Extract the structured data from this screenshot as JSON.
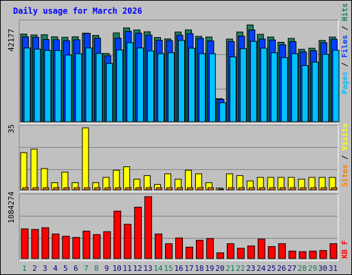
{
  "chart_data": [
    {
      "type": "bar",
      "title": "Daily usage for March 2026",
      "categories": [
        "1",
        "2",
        "3",
        "4",
        "5",
        "6",
        "7",
        "8",
        "9",
        "10",
        "11",
        "12",
        "13",
        "14",
        "15",
        "16",
        "17",
        "18",
        "19",
        "20",
        "21",
        "22",
        "23",
        "24",
        "25",
        "26",
        "27",
        "28",
        "29",
        "30",
        "31"
      ],
      "weekend_days": [
        "1",
        "7",
        "8",
        "14",
        "15",
        "21",
        "22",
        "28",
        "29"
      ],
      "ylabel_max": "42177",
      "ylim": [
        0,
        42177
      ],
      "legend": [
        {
          "label": "Pages",
          "color": "#00c0ff"
        },
        {
          "label": "Files",
          "color": "#0040ff"
        },
        {
          "label": "Hits",
          "color": "#208060"
        }
      ],
      "series": [
        {
          "name": "Hits",
          "color": "#208060",
          "values": [
            38400,
            38000,
            38100,
            37200,
            37000,
            37200,
            38800,
            37800,
            29900,
            38900,
            41100,
            40200,
            39400,
            36900,
            36300,
            39300,
            40200,
            37400,
            37100,
            10100,
            36200,
            39300,
            42400,
            38300,
            37100,
            34800,
            36500,
            31700,
            32200,
            35600,
            37100
          ]
        },
        {
          "name": "Files",
          "color": "#0040ff",
          "values": [
            37200,
            37000,
            36000,
            35900,
            35500,
            35900,
            38700,
            36600,
            28900,
            36600,
            39600,
            38800,
            37900,
            35700,
            35500,
            37900,
            38600,
            36500,
            35400,
            9800,
            35100,
            37500,
            40200,
            36200,
            35800,
            33700,
            35100,
            30600,
            31100,
            34600,
            36100
          ]
        },
        {
          "name": "Pages",
          "color": "#00c0ff",
          "values": [
            32300,
            31800,
            31200,
            31200,
            29200,
            29800,
            32300,
            29900,
            25500,
            31400,
            34600,
            32300,
            31000,
            29800,
            30200,
            35600,
            32200,
            29800,
            29800,
            8300,
            28400,
            32000,
            35200,
            32200,
            30200,
            28100,
            29800,
            24600,
            26100,
            29500,
            31300
          ]
        }
      ]
    },
    {
      "type": "bar",
      "categories": [
        "1",
        "2",
        "3",
        "4",
        "5",
        "6",
        "7",
        "8",
        "9",
        "10",
        "11",
        "12",
        "13",
        "14",
        "15",
        "16",
        "17",
        "18",
        "19",
        "20",
        "21",
        "22",
        "23",
        "24",
        "25",
        "26",
        "27",
        "28",
        "29",
        "30",
        "31"
      ],
      "ylabel_max": "35",
      "ylim": [
        0,
        35
      ],
      "legend": [
        {
          "label": "Sites",
          "color": "#ff8000"
        },
        {
          "label": "Visits",
          "color": "#ffff00"
        }
      ],
      "series": [
        {
          "name": "Visits",
          "color": "#ffff00",
          "values": [
            21,
            23,
            12,
            4,
            10,
            4,
            35,
            4,
            7,
            11,
            13,
            6,
            8,
            3,
            9,
            6,
            11,
            9,
            4,
            1,
            9,
            8,
            5,
            7,
            7,
            7,
            7,
            6,
            7,
            7,
            7
          ]
        },
        {
          "name": "Sites",
          "color": "#ff8000",
          "values": [
            1,
            1,
            1,
            1,
            1,
            1,
            1,
            1,
            1,
            1,
            1,
            1,
            1,
            1,
            1,
            1,
            1,
            1,
            1,
            0,
            1,
            1,
            1,
            1,
            1,
            1,
            1,
            1,
            1,
            1,
            1
          ]
        }
      ]
    },
    {
      "type": "bar",
      "categories": [
        "1",
        "2",
        "3",
        "4",
        "5",
        "6",
        "7",
        "8",
        "9",
        "10",
        "11",
        "12",
        "13",
        "14",
        "15",
        "16",
        "17",
        "18",
        "19",
        "20",
        "21",
        "22",
        "23",
        "24",
        "25",
        "26",
        "27",
        "28",
        "29",
        "30",
        "31"
      ],
      "ylabel_max": "1084274",
      "ylim": [
        0,
        1084274
      ],
      "legend": [
        {
          "label": "KB F",
          "color": "#ff0000"
        }
      ],
      "series": [
        {
          "name": "KB F",
          "color": "#ff0000",
          "values": [
            520000,
            510000,
            540000,
            430000,
            390000,
            370000,
            480000,
            420000,
            470000,
            830000,
            600000,
            900000,
            1084274,
            430000,
            260000,
            360000,
            200000,
            320000,
            350000,
            100000,
            260000,
            180000,
            220000,
            340000,
            210000,
            260000,
            130000,
            120000,
            130000,
            140000,
            260000
          ]
        }
      ]
    }
  ]
}
